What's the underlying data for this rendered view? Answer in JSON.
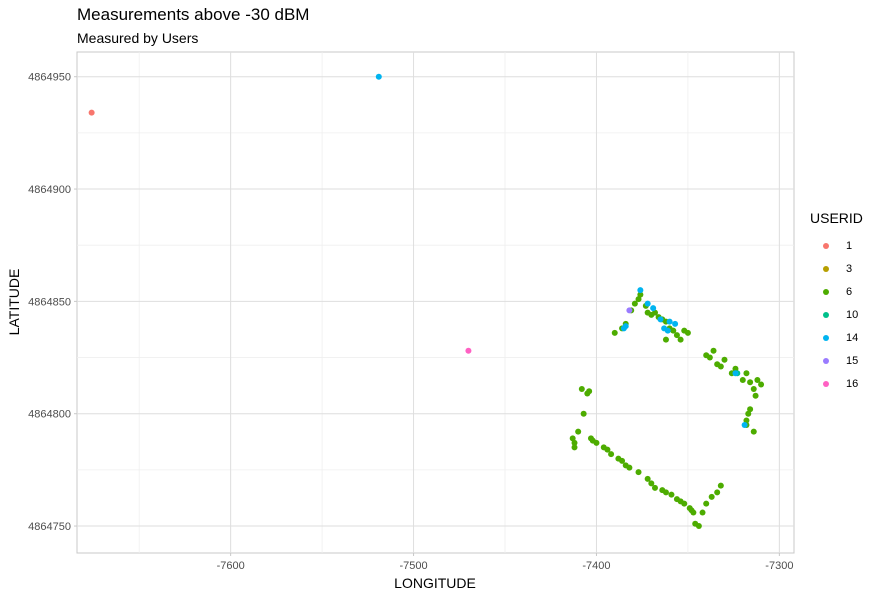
{
  "chart_data": {
    "type": "scatter",
    "title": "Measurements above -30 dBM",
    "subtitle": "Measured by Users",
    "xlabel": "LONGITUDE",
    "ylabel": "LATITUDE",
    "xlim": [
      -7684,
      -7292
    ],
    "ylim": [
      4864738,
      4864961
    ],
    "x_ticks": [
      -7600,
      -7500,
      -7400,
      -7300
    ],
    "y_ticks": [
      4864750,
      4864800,
      4864850,
      4864900,
      4864950
    ],
    "x_minor": [
      -7650,
      -7550,
      -7450,
      -7350
    ],
    "y_minor": [
      4864775,
      4864825,
      4864875,
      4864925
    ],
    "grid": true,
    "legend_title": "USERID",
    "legend_position": "right",
    "series": [
      {
        "name": "1",
        "color": "#F8766D",
        "points": [
          [
            -7676,
            4864934
          ]
        ]
      },
      {
        "name": "3",
        "color": "#B79F00",
        "points": []
      },
      {
        "name": "6",
        "color": "#4DAC00",
        "points": [
          [
            -7412,
            4864787
          ],
          [
            -7413,
            4864789
          ],
          [
            -7412,
            4864785
          ],
          [
            -7410,
            4864792
          ],
          [
            -7403,
            4864789
          ],
          [
            -7402,
            4864788
          ],
          [
            -7400,
            4864787
          ],
          [
            -7396,
            4864785
          ],
          [
            -7394,
            4864784
          ],
          [
            -7392,
            4864782
          ],
          [
            -7388,
            4864780
          ],
          [
            -7386,
            4864779
          ],
          [
            -7384,
            4864777
          ],
          [
            -7382,
            4864776
          ],
          [
            -7377,
            4864774
          ],
          [
            -7372,
            4864771
          ],
          [
            -7370,
            4864769
          ],
          [
            -7368,
            4864767
          ],
          [
            -7364,
            4864766
          ],
          [
            -7362,
            4864765
          ],
          [
            -7359,
            4864764
          ],
          [
            -7356,
            4864762
          ],
          [
            -7354,
            4864761
          ],
          [
            -7352,
            4864760
          ],
          [
            -7349,
            4864758
          ],
          [
            -7348,
            4864757
          ],
          [
            -7347,
            4864756
          ],
          [
            -7346,
            4864751
          ],
          [
            -7344,
            4864750
          ],
          [
            -7342,
            4864756
          ],
          [
            -7340,
            4864760
          ],
          [
            -7337,
            4864763
          ],
          [
            -7334,
            4864765
          ],
          [
            -7332,
            4864768
          ],
          [
            -7407,
            4864800
          ],
          [
            -7408,
            4864811
          ],
          [
            -7405,
            4864809
          ],
          [
            -7404,
            4864810
          ],
          [
            -7390,
            4864836
          ],
          [
            -7386,
            4864838
          ],
          [
            -7384,
            4864840
          ],
          [
            -7381,
            4864846
          ],
          [
            -7379,
            4864849
          ],
          [
            -7377,
            4864851
          ],
          [
            -7376,
            4864853
          ],
          [
            -7373,
            4864848
          ],
          [
            -7372,
            4864845
          ],
          [
            -7370,
            4864844
          ],
          [
            -7368,
            4864845
          ],
          [
            -7366,
            4864843
          ],
          [
            -7364,
            4864842
          ],
          [
            -7362,
            4864841
          ],
          [
            -7360,
            4864838
          ],
          [
            -7358,
            4864837
          ],
          [
            -7356,
            4864835
          ],
          [
            -7354,
            4864833
          ],
          [
            -7352,
            4864837
          ],
          [
            -7362,
            4864833
          ],
          [
            -7350,
            4864836
          ],
          [
            -7340,
            4864826
          ],
          [
            -7338,
            4864825
          ],
          [
            -7336,
            4864828
          ],
          [
            -7334,
            4864822
          ],
          [
            -7332,
            4864821
          ],
          [
            -7330,
            4864824
          ],
          [
            -7326,
            4864818
          ],
          [
            -7324,
            4864820
          ],
          [
            -7320,
            4864815
          ],
          [
            -7318,
            4864818
          ],
          [
            -7316,
            4864814
          ],
          [
            -7314,
            4864811
          ],
          [
            -7313,
            4864808
          ],
          [
            -7312,
            4864815
          ],
          [
            -7310,
            4864813
          ],
          [
            -7316,
            4864802
          ],
          [
            -7317,
            4864800
          ],
          [
            -7318,
            4864797
          ],
          [
            -7314,
            4864792
          ],
          [
            -7318,
            4864795
          ]
        ]
      },
      {
        "name": "10",
        "color": "#00C08B",
        "points": [
          [
            -7323,
            4864818
          ]
        ]
      },
      {
        "name": "14",
        "color": "#00B4F0",
        "points": [
          [
            -7519,
            4864950
          ],
          [
            -7385,
            4864838
          ],
          [
            -7384,
            4864839
          ],
          [
            -7376,
            4864855
          ],
          [
            -7372,
            4864849
          ],
          [
            -7369,
            4864847
          ],
          [
            -7365,
            4864842
          ],
          [
            -7363,
            4864838
          ],
          [
            -7361,
            4864837
          ],
          [
            -7360,
            4864841
          ],
          [
            -7357,
            4864840
          ],
          [
            -7324,
            4864818
          ],
          [
            -7319,
            4864795
          ]
        ]
      },
      {
        "name": "15",
        "color": "#9A7BFF",
        "points": [
          [
            -7382,
            4864846
          ]
        ]
      },
      {
        "name": "16",
        "color": "#FF61C3",
        "points": [
          [
            -7470,
            4864828
          ]
        ]
      }
    ]
  }
}
